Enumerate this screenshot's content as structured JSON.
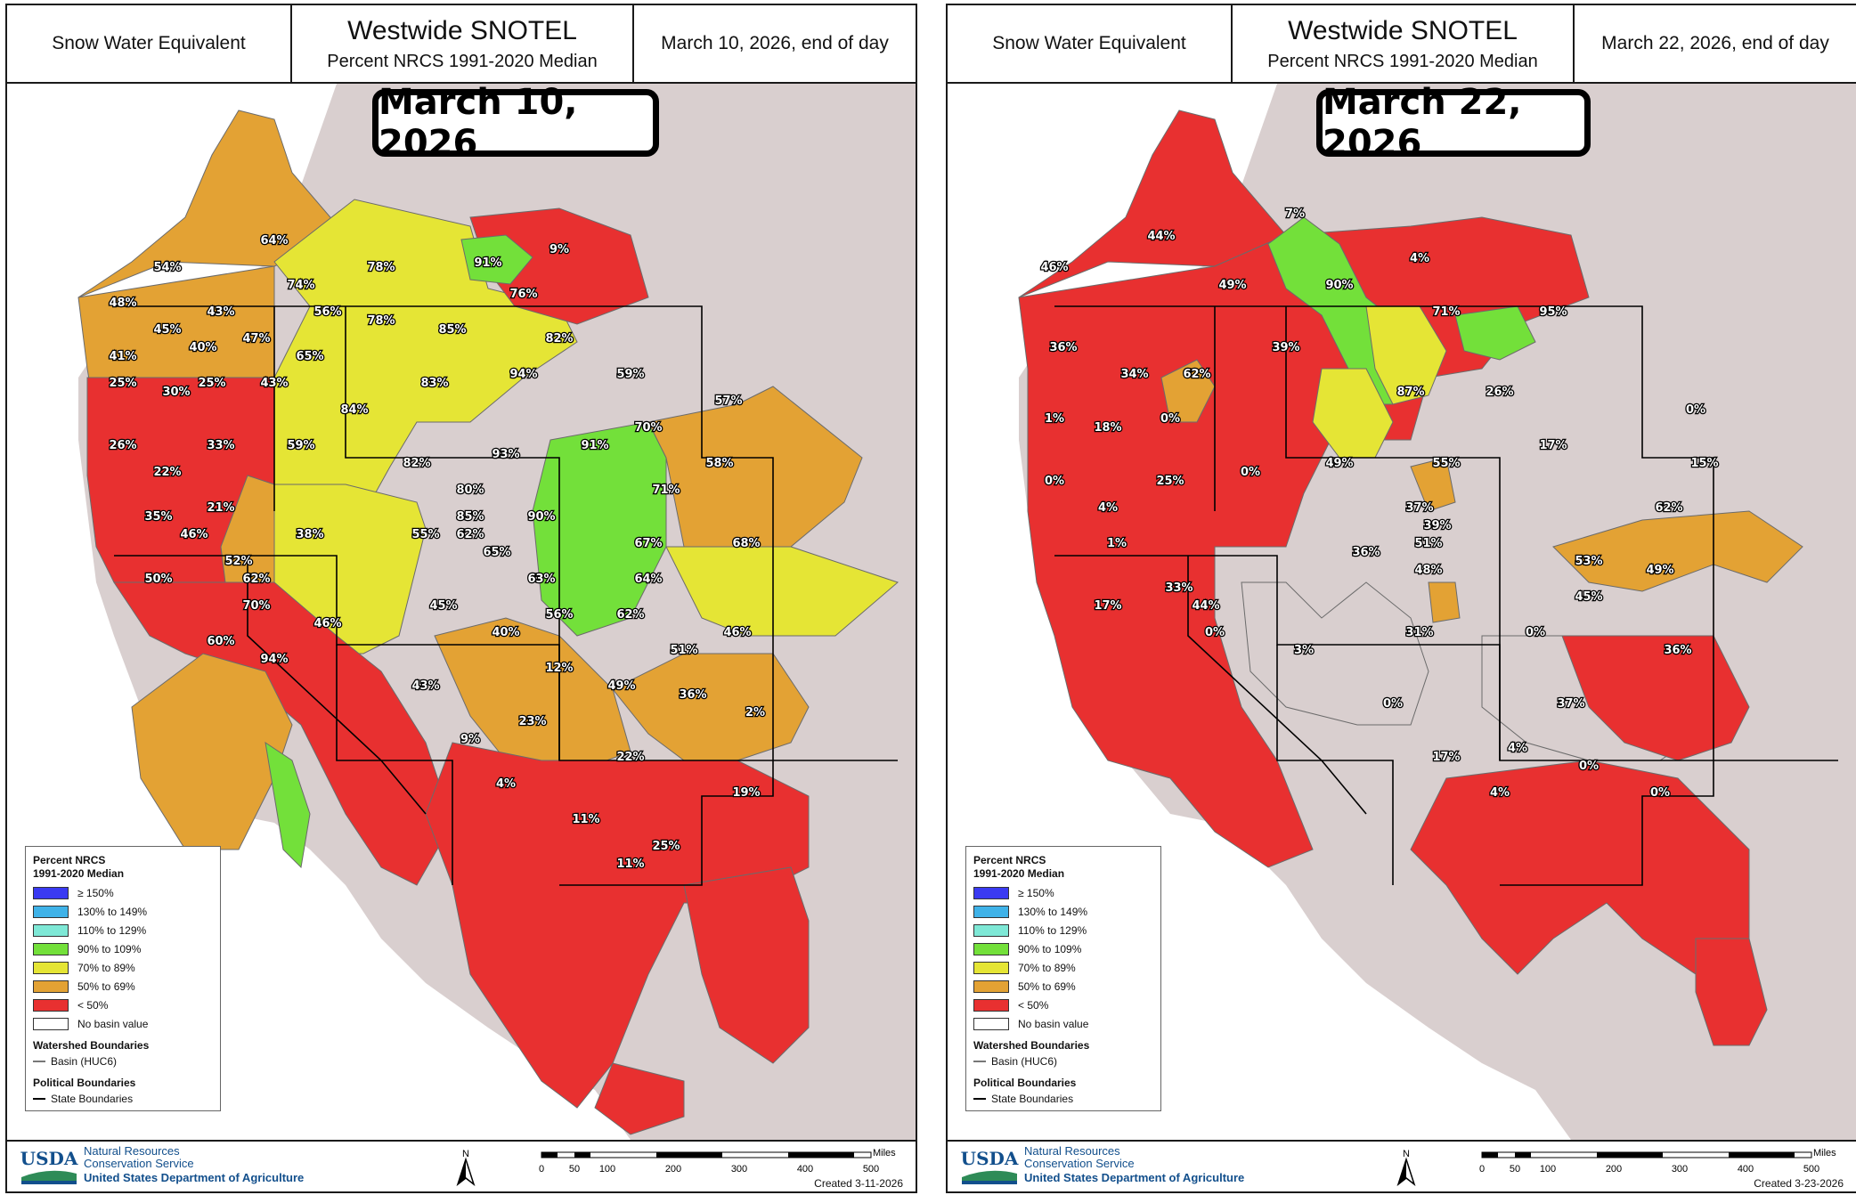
{
  "legend_colors": {
    "ge150": "#3a3af2",
    "130_149": "#3fb2e8",
    "110_129": "#7ee8d6",
    "90_109": "#73e03a",
    "70_89": "#e5e535",
    "50_69": "#e3a234",
    "lt50": "#e83030",
    "no_value": "#ffffff",
    "land_outside": "#d9cfcf"
  },
  "panels": [
    {
      "header": {
        "left": "Snow Water Equivalent",
        "title": "Westwide SNOTEL",
        "subtitle": "Percent NRCS 1991-2020 Median",
        "date": "March 10, 2026, end of day"
      },
      "big_label": "March 10, 2026",
      "legend": {
        "title_line1": "Percent NRCS",
        "title_line2": "1991-2020 Median",
        "items": [
          "≥ 150%",
          "130% to 149%",
          "110% to 129%",
          "90% to 109%",
          "70% to 89%",
          "50% to 69%",
          "< 50%",
          "No basin value"
        ],
        "watershed_title": "Watershed Boundaries",
        "basin_label": "Basin (HUC6)",
        "political_title": "Political Boundaries",
        "state_label": "State Boundaries"
      },
      "footer": {
        "agency_line1": "Natural Resources",
        "agency_line2": "Conservation Service",
        "dept": "United States Department of Agriculture",
        "logo_text": "USDA",
        "north": "N",
        "miles_label": "Miles",
        "scale_ticks": [
          "0",
          "50",
          "100",
          "200",
          "300",
          "400",
          "500"
        ],
        "created": "Created 3-11-2026"
      },
      "basin_values": [
        {
          "label": "64%",
          "category": "50_69"
        },
        {
          "label": "54%",
          "category": "50_69"
        },
        {
          "label": "48%",
          "category": "lt50"
        },
        {
          "label": "43%",
          "category": "lt50"
        },
        {
          "label": "45%",
          "category": "lt50"
        },
        {
          "label": "41%",
          "category": "lt50"
        },
        {
          "label": "40%",
          "category": "lt50"
        },
        {
          "label": "47%",
          "category": "lt50"
        },
        {
          "label": "43%",
          "category": "lt50"
        },
        {
          "label": "25%",
          "category": "lt50"
        },
        {
          "label": "30%",
          "category": "lt50"
        },
        {
          "label": "25%",
          "category": "lt50"
        },
        {
          "label": "26%",
          "category": "lt50"
        },
        {
          "label": "33%",
          "category": "lt50"
        },
        {
          "label": "22%",
          "category": "lt50"
        },
        {
          "label": "74%",
          "category": "70_89"
        },
        {
          "label": "78%",
          "category": "70_89"
        },
        {
          "label": "9%",
          "category": "lt50"
        },
        {
          "label": "91%",
          "category": "90_109"
        },
        {
          "label": "56%",
          "category": "50_69"
        },
        {
          "label": "78%",
          "category": "70_89"
        },
        {
          "label": "76%",
          "category": "70_89"
        },
        {
          "label": "85%",
          "category": "70_89"
        },
        {
          "label": "82%",
          "category": "70_89"
        },
        {
          "label": "65%",
          "category": "50_69"
        },
        {
          "label": "83%",
          "category": "70_89"
        },
        {
          "label": "94%",
          "category": "90_109"
        },
        {
          "label": "59%",
          "category": "50_69"
        },
        {
          "label": "84%",
          "category": "70_89"
        },
        {
          "label": "57%",
          "category": "50_69"
        },
        {
          "label": "70%",
          "category": "70_89"
        },
        {
          "label": "91%",
          "category": "90_109"
        },
        {
          "label": "59%",
          "category": "50_69"
        },
        {
          "label": "82%",
          "category": "70_89"
        },
        {
          "label": "93%",
          "category": "90_109"
        },
        {
          "label": "58%",
          "category": "50_69"
        },
        {
          "label": "71%",
          "category": "70_89"
        },
        {
          "label": "80%",
          "category": "70_89"
        },
        {
          "label": "90%",
          "category": "90_109"
        },
        {
          "label": "85%",
          "category": "70_89"
        },
        {
          "label": "62%",
          "category": "50_69"
        },
        {
          "label": "21%",
          "category": "lt50"
        },
        {
          "label": "35%",
          "category": "lt50"
        },
        {
          "label": "46%",
          "category": "lt50"
        },
        {
          "label": "38%",
          "category": "lt50"
        },
        {
          "label": "55%",
          "category": "50_69"
        },
        {
          "label": "67%",
          "category": "50_69"
        },
        {
          "label": "68%",
          "category": "50_69"
        },
        {
          "label": "65%",
          "category": "50_69"
        },
        {
          "label": "52%",
          "category": "50_69"
        },
        {
          "label": "50%",
          "category": "50_69"
        },
        {
          "label": "62%",
          "category": "50_69"
        },
        {
          "label": "63%",
          "category": "50_69"
        },
        {
          "label": "64%",
          "category": "50_69"
        },
        {
          "label": "70%",
          "category": "70_89"
        },
        {
          "label": "45%",
          "category": "lt50"
        },
        {
          "label": "56%",
          "category": "50_69"
        },
        {
          "label": "62%",
          "category": "50_69"
        },
        {
          "label": "46%",
          "category": "lt50"
        },
        {
          "label": "46%",
          "category": "lt50"
        },
        {
          "label": "40%",
          "category": "lt50"
        },
        {
          "label": "60%",
          "category": "50_69"
        },
        {
          "label": "51%",
          "category": "50_69"
        },
        {
          "label": "94%",
          "category": "90_109"
        },
        {
          "label": "12%",
          "category": "lt50"
        },
        {
          "label": "43%",
          "category": "lt50"
        },
        {
          "label": "49%",
          "category": "lt50"
        },
        {
          "label": "36%",
          "category": "lt50"
        },
        {
          "label": "2%",
          "category": "lt50"
        },
        {
          "label": "23%",
          "category": "lt50"
        },
        {
          "label": "9%",
          "category": "lt50"
        },
        {
          "label": "22%",
          "category": "lt50"
        },
        {
          "label": "4%",
          "category": "lt50"
        },
        {
          "label": "19%",
          "category": "lt50"
        },
        {
          "label": "11%",
          "category": "lt50"
        },
        {
          "label": "25%",
          "category": "lt50"
        },
        {
          "label": "11%",
          "category": "lt50"
        }
      ]
    },
    {
      "header": {
        "left": "Snow Water Equivalent",
        "title": "Westwide SNOTEL",
        "subtitle": "Percent NRCS 1991-2020 Median",
        "date": "March 22, 2026, end of day"
      },
      "big_label": "March 22, 2026",
      "legend": {
        "title_line1": "Percent NRCS",
        "title_line2": "1991-2020 Median",
        "items": [
          "≥ 150%",
          "130% to 149%",
          "110% to 129%",
          "90% to 109%",
          "70% to 89%",
          "50% to 69%",
          "< 50%",
          "No basin value"
        ],
        "watershed_title": "Watershed Boundaries",
        "basin_label": "Basin (HUC6)",
        "political_title": "Political Boundaries",
        "state_label": "State Boundaries"
      },
      "footer": {
        "agency_line1": "Natural Resources",
        "agency_line2": "Conservation Service",
        "dept": "United States Department of Agriculture",
        "logo_text": "USDA",
        "north": "N",
        "miles_label": "Miles",
        "scale_ticks": [
          "0",
          "50",
          "100",
          "200",
          "300",
          "400",
          "500"
        ],
        "created": "Created 3-23-2026"
      },
      "basin_values": [
        {
          "label": "7%",
          "category": "lt50"
        },
        {
          "label": "44%",
          "category": "lt50"
        },
        {
          "label": "46%",
          "category": "lt50"
        },
        {
          "label": "4%",
          "category": "lt50"
        },
        {
          "label": "49%",
          "category": "lt50"
        },
        {
          "label": "90%",
          "category": "90_109"
        },
        {
          "label": "71%",
          "category": "70_89"
        },
        {
          "label": "95%",
          "category": "90_109"
        },
        {
          "label": "36%",
          "category": "lt50"
        },
        {
          "label": "39%",
          "category": "lt50"
        },
        {
          "label": "62%",
          "category": "50_69"
        },
        {
          "label": "34%",
          "category": "lt50"
        },
        {
          "label": "87%",
          "category": "70_89"
        },
        {
          "label": "26%",
          "category": "lt50"
        },
        {
          "label": "1%",
          "category": "lt50"
        },
        {
          "label": "18%",
          "category": "lt50"
        },
        {
          "label": "0%",
          "category": "lt50"
        },
        {
          "label": "0%",
          "category": "lt50"
        },
        {
          "label": "17%",
          "category": "lt50"
        },
        {
          "label": "0%",
          "category": "lt50"
        },
        {
          "label": "49%",
          "category": "lt50"
        },
        {
          "label": "55%",
          "category": "50_69"
        },
        {
          "label": "15%",
          "category": "lt50"
        },
        {
          "label": "0%",
          "category": "lt50"
        },
        {
          "label": "25%",
          "category": "lt50"
        },
        {
          "label": "4%",
          "category": "lt50"
        },
        {
          "label": "37%",
          "category": "lt50"
        },
        {
          "label": "62%",
          "category": "50_69"
        },
        {
          "label": "39%",
          "category": "lt50"
        },
        {
          "label": "51%",
          "category": "50_69"
        },
        {
          "label": "1%",
          "category": "lt50"
        },
        {
          "label": "36%",
          "category": "lt50"
        },
        {
          "label": "53%",
          "category": "50_69"
        },
        {
          "label": "33%",
          "category": "lt50"
        },
        {
          "label": "48%",
          "category": "lt50"
        },
        {
          "label": "49%",
          "category": "lt50"
        },
        {
          "label": "17%",
          "category": "lt50"
        },
        {
          "label": "44%",
          "category": "lt50"
        },
        {
          "label": "45%",
          "category": "lt50"
        },
        {
          "label": "0%",
          "category": "lt50"
        },
        {
          "label": "31%",
          "category": "lt50"
        },
        {
          "label": "0%",
          "category": "lt50"
        },
        {
          "label": "3%",
          "category": "lt50"
        },
        {
          "label": "36%",
          "category": "lt50"
        },
        {
          "label": "0%",
          "category": "lt50"
        },
        {
          "label": "37%",
          "category": "lt50"
        },
        {
          "label": "17%",
          "category": "lt50"
        },
        {
          "label": "4%",
          "category": "lt50"
        },
        {
          "label": "0%",
          "category": "lt50"
        },
        {
          "label": "4%",
          "category": "lt50"
        },
        {
          "label": "0%",
          "category": "lt50"
        }
      ]
    }
  ]
}
